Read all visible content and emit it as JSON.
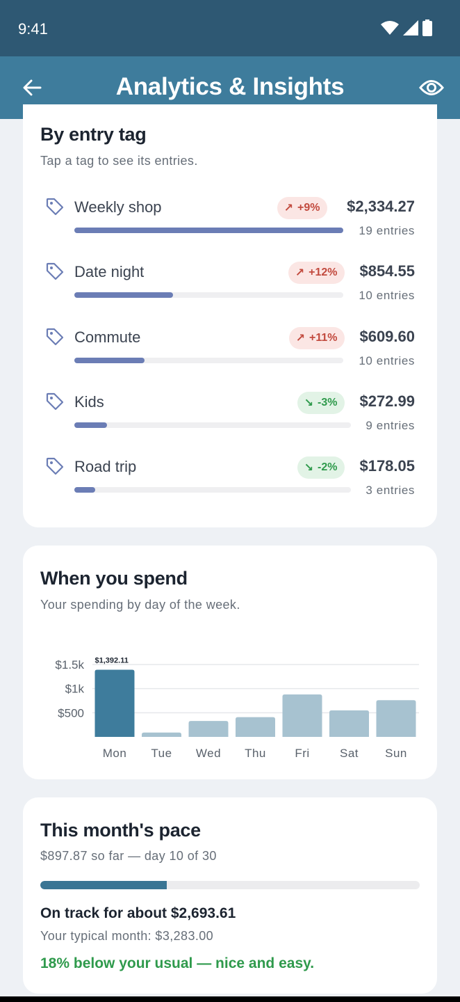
{
  "status": {
    "time": "9:41"
  },
  "app_bar": {
    "title": "Analytics & Insights"
  },
  "tags_card": {
    "title": "By entry tag",
    "subtitle": "Tap a tag to see its entries.",
    "items": [
      {
        "name": "Weekly shop",
        "change": "+9%",
        "direction": "up",
        "amount": "$2,334.27",
        "count": "19 entries",
        "share": 1.0
      },
      {
        "name": "Date night",
        "change": "+12%",
        "direction": "up",
        "amount": "$854.55",
        "count": "10 entries",
        "share": 0.366
      },
      {
        "name": "Commute",
        "change": "+11%",
        "direction": "up",
        "amount": "$609.60",
        "count": "10 entries",
        "share": 0.261
      },
      {
        "name": "Kids",
        "change": "-3%",
        "direction": "down",
        "amount": "$272.99",
        "count": "9 entries",
        "share": 0.117
      },
      {
        "name": "Road trip",
        "change": "-2%",
        "direction": "down",
        "amount": "$178.05",
        "count": "3 entries",
        "share": 0.076
      }
    ]
  },
  "chart_card": {
    "title": "When you spend",
    "subtitle": "Your spending by day of the week."
  },
  "chart_data": {
    "type": "bar",
    "categories": [
      "Mon",
      "Tue",
      "Wed",
      "Thu",
      "Fri",
      "Sat",
      "Sun"
    ],
    "values": [
      1392.11,
      90,
      330,
      410,
      880,
      550,
      760
    ],
    "highlight_index": 0,
    "highlight_label": "$1,392.11",
    "ylim": [
      0,
      1500
    ],
    "yticks": [
      500,
      1000,
      1500
    ],
    "ytick_labels": [
      "$500",
      "$1k",
      "$1.5k"
    ],
    "grid": true,
    "colors": {
      "highlight": "#3e7c9c",
      "normal": "#a7c2d0",
      "grid": "#e6e8eb"
    }
  },
  "pace_card": {
    "title": "This month's pace",
    "subtitle": "$897.87 so far — day 10 of 30",
    "progress": 0.333,
    "projection": "On track for about $2,693.61",
    "typical": "Your typical month: $3,283.00",
    "note": "18% below your usual — nice and easy."
  },
  "icons": {
    "back": "arrow-left-icon",
    "eye": "eye-icon",
    "tag": "tag-icon"
  }
}
